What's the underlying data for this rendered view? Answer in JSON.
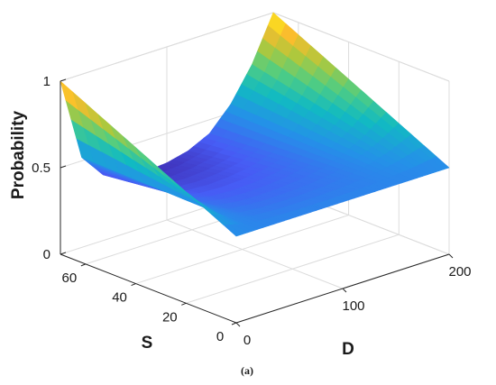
{
  "chart_data": {
    "type": "surface",
    "title": "",
    "xlabel": "D",
    "ylabel": "S",
    "zlabel": "Probability",
    "xlim": [
      0,
      200
    ],
    "ylim": [
      0,
      70
    ],
    "zlim": [
      0,
      1
    ],
    "x_ticks": [
      "0",
      "100",
      "200"
    ],
    "y_ticks": [
      "0",
      "20",
      "40",
      "60"
    ],
    "z_ticks": [
      "0",
      "0.5",
      "1"
    ],
    "grid": true,
    "colormap": "parula",
    "profile_at_min_S": {
      "x": [
        0,
        200
      ],
      "z": [
        0.5,
        0.5
      ]
    },
    "profile_at_max_S": {
      "x": [
        0,
        20,
        40,
        60,
        80,
        100,
        120,
        140,
        160,
        180,
        200
      ],
      "z": [
        1.0,
        0.52,
        0.38,
        0.33,
        0.32,
        0.33,
        0.36,
        0.42,
        0.55,
        0.74,
        1.0
      ]
    },
    "caption": "(a)"
  }
}
